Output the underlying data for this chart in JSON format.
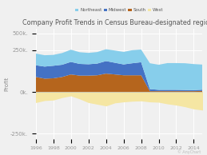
{
  "title": "Company Profit Trends in Census Bureau-designated regions",
  "ylabel": "Profit",
  "colors": {
    "northeast": "#87ceeb",
    "midwest": "#4472c4",
    "south": "#b5651d",
    "west": "#f5e6a3"
  },
  "ylim": [
    -2800,
    3800
  ],
  "bg_color": "#f0f0f0",
  "grid_color": "#ffffff",
  "years": [
    1996,
    1997,
    1998,
    1999,
    2000,
    2001,
    2002,
    2003,
    2004,
    2005,
    2006,
    2007,
    2008,
    2009,
    2010,
    2011,
    2012,
    2013,
    2014,
    2015
  ],
  "south": [
    900,
    800,
    820,
    900,
    1050,
    980,
    980,
    1000,
    1100,
    1050,
    1000,
    1000,
    1000,
    50,
    50,
    50,
    50,
    50,
    50,
    60
  ],
  "midwest": [
    700,
    720,
    750,
    730,
    750,
    700,
    680,
    700,
    750,
    700,
    650,
    720,
    780,
    120,
    80,
    80,
    80,
    70,
    60,
    80
  ],
  "northeast": [
    700,
    680,
    650,
    700,
    730,
    700,
    680,
    690,
    710,
    730,
    750,
    780,
    760,
    1550,
    1500,
    1600,
    1600,
    1600,
    1560,
    1500
  ],
  "west": [
    -600,
    -480,
    -450,
    -300,
    -200,
    -380,
    -600,
    -700,
    -800,
    -620,
    -560,
    -520,
    -500,
    -560,
    -580,
    -680,
    -750,
    -850,
    -980,
    -1050
  ]
}
